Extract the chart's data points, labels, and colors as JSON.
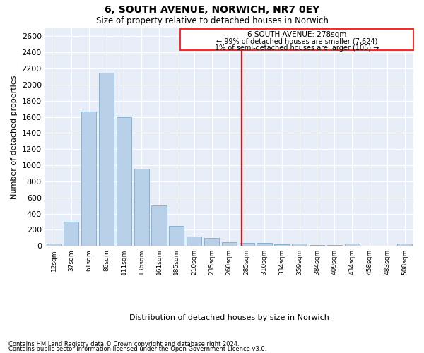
{
  "title": "6, SOUTH AVENUE, NORWICH, NR7 0EY",
  "subtitle": "Size of property relative to detached houses in Norwich",
  "xlabel": "Distribution of detached houses by size in Norwich",
  "ylabel": "Number of detached properties",
  "footer1": "Contains HM Land Registry data © Crown copyright and database right 2024.",
  "footer2": "Contains public sector information licensed under the Open Government Licence v3.0.",
  "annotation_title": "6 SOUTH AVENUE: 278sqm",
  "annotation_line1": "← 99% of detached houses are smaller (7,624)",
  "annotation_line2": "1% of semi-detached houses are larger (105) →",
  "marker_value": 278,
  "bar_color": "#b8d0e8",
  "bar_edge_color": "#6aa0c8",
  "marker_color": "red",
  "background_color": "#e8eef8",
  "categories": [
    "12sqm",
    "37sqm",
    "61sqm",
    "86sqm",
    "111sqm",
    "136sqm",
    "161sqm",
    "185sqm",
    "210sqm",
    "235sqm",
    "260sqm",
    "285sqm",
    "310sqm",
    "334sqm",
    "359sqm",
    "384sqm",
    "409sqm",
    "434sqm",
    "458sqm",
    "483sqm",
    "508sqm"
  ],
  "bin_starts": [
    0,
    1,
    2,
    3,
    4,
    5,
    6,
    7,
    8,
    9,
    10,
    11,
    12,
    13,
    14,
    15,
    16,
    17,
    18,
    19,
    20
  ],
  "values": [
    25,
    300,
    1670,
    2150,
    1595,
    960,
    500,
    250,
    120,
    100,
    45,
    35,
    40,
    20,
    30,
    10,
    10,
    25,
    5,
    5,
    25
  ],
  "ylim": [
    0,
    2700
  ],
  "yticks": [
    0,
    200,
    400,
    600,
    800,
    1000,
    1200,
    1400,
    1600,
    1800,
    2000,
    2200,
    2400,
    2600
  ]
}
